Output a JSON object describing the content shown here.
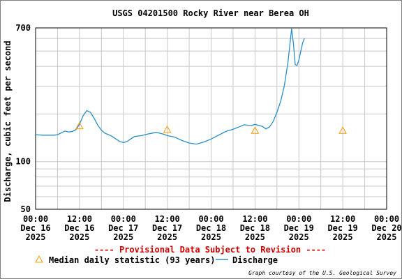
{
  "chart_data": {
    "type": "line",
    "title": "USGS 04201500 Rocky River near Berea OH",
    "ylabel": "Discharge, cubic feet per second",
    "y_scale": "log",
    "ylim": [
      50,
      700
    ],
    "y_tick_labels": [
      "700",
      "100",
      "50"
    ],
    "xlim": [
      "2025-12-16 00:00",
      "2025-12-20 00:00"
    ],
    "x_ticks": [
      {
        "x": "2025-12-16 00:00",
        "label": [
          "00:00",
          "Dec 16",
          "2025"
        ]
      },
      {
        "x": "2025-12-16 12:00",
        "label": [
          "12:00",
          "Dec 16",
          "2025"
        ]
      },
      {
        "x": "2025-12-17 00:00",
        "label": [
          "00:00",
          "Dec 17",
          "2025"
        ]
      },
      {
        "x": "2025-12-17 12:00",
        "label": [
          "12:00",
          "Dec 17",
          "2025"
        ]
      },
      {
        "x": "2025-12-18 00:00",
        "label": [
          "00:00",
          "Dec 18",
          "2025"
        ]
      },
      {
        "x": "2025-12-18 12:00",
        "label": [
          "12:00",
          "Dec 18",
          "2025"
        ]
      },
      {
        "x": "2025-12-19 00:00",
        "label": [
          "00:00",
          "Dec 19",
          "2025"
        ]
      },
      {
        "x": "2025-12-19 12:00",
        "label": [
          "12:00",
          "Dec 19",
          "2025"
        ]
      },
      {
        "x": "2025-12-20 00:00",
        "label": [
          "00:00",
          "Dec 20",
          "2025"
        ]
      }
    ],
    "grid": true,
    "series": [
      {
        "name": "Discharge",
        "color": "#2a8fc6",
        "points": [
          [
            "2025-12-16 00:00",
            148
          ],
          [
            "2025-12-16 02:00",
            147
          ],
          [
            "2025-12-16 05:00",
            147
          ],
          [
            "2025-12-16 06:00",
            148
          ],
          [
            "2025-12-16 07:00",
            152
          ],
          [
            "2025-12-16 08:00",
            156
          ],
          [
            "2025-12-16 09:00",
            154
          ],
          [
            "2025-12-16 10:00",
            155
          ],
          [
            "2025-12-16 11:00",
            159
          ],
          [
            "2025-12-16 12:00",
            172
          ],
          [
            "2025-12-16 13:00",
            195
          ],
          [
            "2025-12-16 14:00",
            210
          ],
          [
            "2025-12-16 15:00",
            205
          ],
          [
            "2025-12-16 16:00",
            188
          ],
          [
            "2025-12-16 17:00",
            170
          ],
          [
            "2025-12-16 18:00",
            158
          ],
          [
            "2025-12-16 19:00",
            151
          ],
          [
            "2025-12-16 20:00",
            148
          ],
          [
            "2025-12-16 21:00",
            144
          ],
          [
            "2025-12-16 22:00",
            139
          ],
          [
            "2025-12-16 23:00",
            134
          ],
          [
            "2025-12-17 00:00",
            132
          ],
          [
            "2025-12-17 01:00",
            134
          ],
          [
            "2025-12-17 02:00",
            139
          ],
          [
            "2025-12-17 03:00",
            144
          ],
          [
            "2025-12-17 05:00",
            146
          ],
          [
            "2025-12-17 07:00",
            150
          ],
          [
            "2025-12-17 09:00",
            153
          ],
          [
            "2025-12-17 11:00",
            149
          ],
          [
            "2025-12-17 12:00",
            146
          ],
          [
            "2025-12-17 14:00",
            143
          ],
          [
            "2025-12-17 16:00",
            136
          ],
          [
            "2025-12-17 18:00",
            131
          ],
          [
            "2025-12-17 20:00",
            129
          ],
          [
            "2025-12-17 22:00",
            133
          ],
          [
            "2025-12-18 00:00",
            139
          ],
          [
            "2025-12-18 02:00",
            147
          ],
          [
            "2025-12-18 04:00",
            155
          ],
          [
            "2025-12-18 06:00",
            160
          ],
          [
            "2025-12-18 08:00",
            167
          ],
          [
            "2025-12-18 09:00",
            171
          ],
          [
            "2025-12-18 11:00",
            169
          ],
          [
            "2025-12-18 12:00",
            172
          ],
          [
            "2025-12-18 14:00",
            167
          ],
          [
            "2025-12-18 15:00",
            161
          ],
          [
            "2025-12-18 16:00",
            166
          ],
          [
            "2025-12-18 17:00",
            180
          ],
          [
            "2025-12-18 18:00",
            205
          ],
          [
            "2025-12-18 19:00",
            240
          ],
          [
            "2025-12-18 20:00",
            300
          ],
          [
            "2025-12-18 21:00",
            420
          ],
          [
            "2025-12-18 22:00",
            690
          ],
          [
            "2025-12-18 22:30",
            560
          ],
          [
            "2025-12-18 23:00",
            410
          ],
          [
            "2025-12-18 23:30",
            405
          ],
          [
            "2025-12-19 00:00",
            440
          ],
          [
            "2025-12-19 01:00",
            560
          ],
          [
            "2025-12-19 01:30",
            600
          ]
        ]
      }
    ],
    "markers": {
      "name": "Median daily statistic (93 years)",
      "symbol": "triangle",
      "color": "#ff9900",
      "points": [
        [
          "2025-12-16 12:00",
          168
        ],
        [
          "2025-12-17 12:00",
          159
        ],
        [
          "2025-12-18 12:00",
          157
        ],
        [
          "2025-12-19 12:00",
          157
        ]
      ]
    },
    "legend_position": "bottom",
    "annotations": [
      {
        "text": "---- Provisional Data Subject to Revision ----",
        "color": "#cc0000"
      },
      {
        "text": "Graph courtesy of the U.S. Geological Survey"
      }
    ]
  }
}
